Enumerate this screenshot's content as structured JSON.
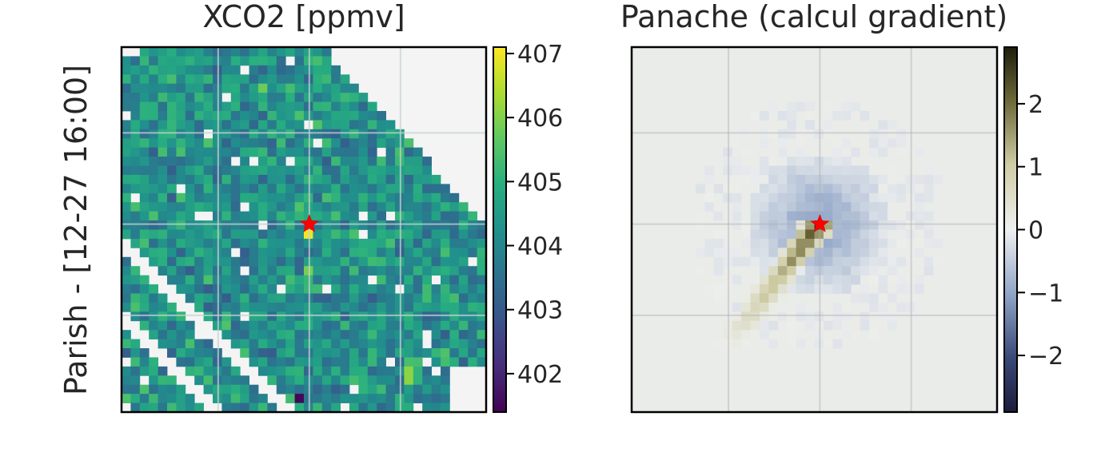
{
  "chart_data": [
    {
      "type": "heatmap",
      "title": "XCO2 [ppmv]",
      "ylabel": "Parish - [12-27 16:00]",
      "colormap": "viridis",
      "colorbar": {
        "ticks": [
          402,
          403,
          404,
          405,
          406,
          407
        ],
        "range": [
          401.4,
          407.1
        ]
      },
      "grid": true,
      "marker": {
        "symbol": "star",
        "color": "#ff0000"
      },
      "missing_color": "#f4f4f4"
    },
    {
      "type": "heatmap",
      "title": "Panache (calcul gradient)",
      "colormap": "diverging-blue-white-olive",
      "colorbar": {
        "ticks": [
          -2,
          -1,
          0,
          1,
          2
        ],
        "tick_labels": [
          "−2",
          "−1",
          "0",
          "1",
          "2"
        ],
        "range": [
          -2.9,
          2.9
        ]
      },
      "grid": true,
      "marker": {
        "symbol": "star",
        "color": "#ff0000"
      }
    }
  ]
}
